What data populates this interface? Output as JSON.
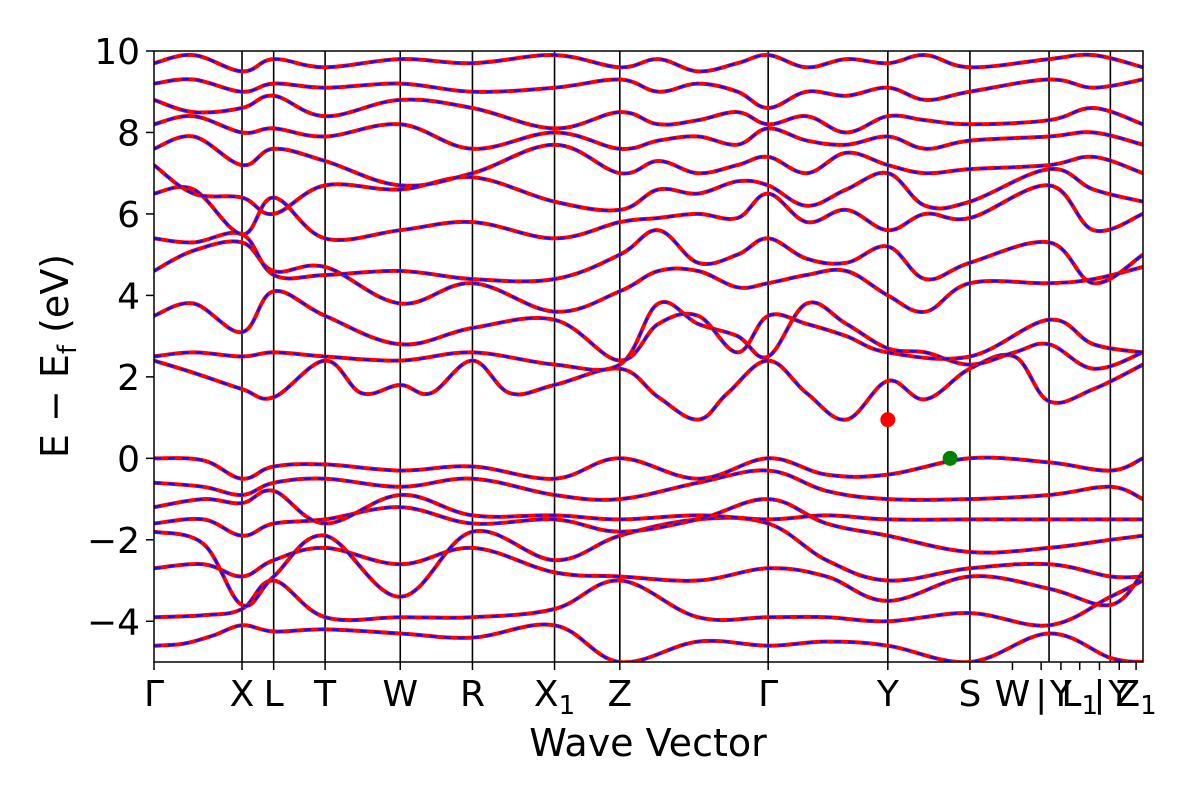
{
  "chart_data": {
    "type": "line",
    "xlabel": "Wave Vector",
    "ylabel": "E − E",
    "ylabel_sub": "f",
    "ylabel_unit": " (eV)",
    "ylim": [
      -5,
      10
    ],
    "xlim": [
      0,
      1
    ],
    "yticks": [
      -4,
      -2,
      0,
      2,
      4,
      6,
      8,
      10
    ],
    "ytick_labels": [
      "−4",
      "−2",
      "0",
      "2",
      "4",
      "6",
      "8",
      "10"
    ],
    "kpoints": [
      {
        "label": "Γ",
        "sub": "",
        "x": 0.0
      },
      {
        "label": "X",
        "sub": "",
        "x": 0.089
      },
      {
        "label": "L",
        "sub": "",
        "x": 0.121
      },
      {
        "label": "T",
        "sub": "",
        "x": 0.173
      },
      {
        "label": "W",
        "sub": "",
        "x": 0.249
      },
      {
        "label": "R",
        "sub": "",
        "x": 0.322
      },
      {
        "label": "X",
        "sub": "1",
        "x": 0.405
      },
      {
        "label": "Z",
        "sub": "",
        "x": 0.471
      },
      {
        "label": "Γ",
        "sub": "",
        "x": 0.621
      },
      {
        "label": "Y",
        "sub": "",
        "x": 0.742
      },
      {
        "label": "S",
        "sub": "",
        "x": 0.825
      },
      {
        "label": "W",
        "sub": "",
        "x": 0.868
      },
      {
        "label": "|",
        "sub": "",
        "x": 0.897
      },
      {
        "label": "Y",
        "sub": "",
        "x": 0.917
      },
      {
        "label": "L",
        "sub": "1",
        "x": 0.936
      },
      {
        "label": "|",
        "sub": "",
        "x": 0.956
      },
      {
        "label": "Y",
        "sub": "",
        "x": 0.976
      },
      {
        "label": "Z",
        "sub": "1",
        "x": 0.993
      }
    ],
    "kpath_lines": [
      0.089,
      0.121,
      0.173,
      0.249,
      0.322,
      0.405,
      0.471,
      0.621,
      0.742,
      0.825,
      0.905,
      0.967
    ],
    "series": [
      {
        "color": "#ff0000",
        "style": "solid"
      },
      {
        "color": "#0000ff",
        "style": "dashed"
      }
    ],
    "bands": [
      {
        "x": [
          0,
          0.03,
          0.06,
          0.089,
          0.121,
          0.173,
          0.249,
          0.322,
          0.405,
          0.471,
          0.55,
          0.621,
          0.68,
          0.742,
          0.825,
          0.905,
          0.967,
          1.0
        ],
        "y": [
          -4.6,
          -4.55,
          -4.35,
          -4.1,
          -4.25,
          -4.2,
          -4.3,
          -4.4,
          -4.1,
          -5.0,
          -4.5,
          -4.6,
          -4.5,
          -4.6,
          -5.0,
          -4.3,
          -4.9,
          -5.0
        ]
      },
      {
        "x": [
          0,
          0.05,
          0.089,
          0.121,
          0.173,
          0.249,
          0.322,
          0.405,
          0.471,
          0.55,
          0.621,
          0.68,
          0.742,
          0.825,
          0.905,
          0.967,
          1.0
        ],
        "y": [
          -3.9,
          -3.85,
          -3.7,
          -3.0,
          -3.9,
          -3.9,
          -3.9,
          -3.7,
          -3.0,
          -3.9,
          -3.9,
          -3.9,
          -4.0,
          -3.8,
          -4.1,
          -3.4,
          -3.0
        ]
      },
      {
        "x": [
          0,
          0.05,
          0.089,
          0.121,
          0.173,
          0.249,
          0.322,
          0.405,
          0.471,
          0.55,
          0.621,
          0.68,
          0.742,
          0.825,
          0.905,
          0.967,
          1.0
        ],
        "y": [
          -2.7,
          -2.6,
          -2.9,
          -2.5,
          -2.2,
          -2.6,
          -2.2,
          -2.8,
          -2.9,
          -3.0,
          -2.7,
          -2.9,
          -3.5,
          -2.9,
          -3.2,
          -3.6,
          -2.8
        ]
      },
      {
        "x": [
          0,
          0.05,
          0.089,
          0.121,
          0.173,
          0.249,
          0.322,
          0.405,
          0.471,
          0.55,
          0.621,
          0.68,
          0.742,
          0.825,
          0.905,
          0.967,
          1.0
        ],
        "y": [
          -1.8,
          -2.1,
          -3.6,
          -2.9,
          -1.9,
          -3.4,
          -1.8,
          -2.5,
          -1.9,
          -1.5,
          -1.6,
          -2.5,
          -3.0,
          -2.7,
          -2.6,
          -2.9,
          -2.9
        ]
      },
      {
        "x": [
          0,
          0.05,
          0.089,
          0.121,
          0.173,
          0.249,
          0.322,
          0.405,
          0.471,
          0.55,
          0.621,
          0.68,
          0.742,
          0.825,
          0.905,
          0.967,
          1.0
        ],
        "y": [
          -1.6,
          -1.5,
          -1.9,
          -1.6,
          -1.5,
          -1.2,
          -1.6,
          -1.5,
          -1.8,
          -1.5,
          -1.0,
          -1.6,
          -1.9,
          -2.3,
          -2.2,
          -2.0,
          -1.9
        ]
      },
      {
        "x": [
          0,
          0.05,
          0.089,
          0.121,
          0.173,
          0.249,
          0.322,
          0.405,
          0.471,
          0.55,
          0.621,
          0.68,
          0.742,
          0.825,
          0.905,
          0.967,
          1.0
        ],
        "y": [
          -1.2,
          -1.0,
          -1.1,
          -0.8,
          -1.6,
          -0.9,
          -1.4,
          -1.4,
          -1.5,
          -1.4,
          -1.5,
          -1.4,
          -1.5,
          -1.5,
          -1.5,
          -1.5,
          -1.5
        ]
      },
      {
        "x": [
          0,
          0.05,
          0.089,
          0.121,
          0.173,
          0.249,
          0.322,
          0.405,
          0.471,
          0.55,
          0.621,
          0.68,
          0.742,
          0.825,
          0.905,
          0.967,
          1.0
        ],
        "y": [
          -0.6,
          -0.7,
          -0.9,
          -0.6,
          -0.5,
          -0.7,
          -0.5,
          -0.9,
          -1.0,
          -0.6,
          -0.3,
          -0.8,
          -1.0,
          -1.0,
          -0.9,
          -0.7,
          -1.0
        ]
      },
      {
        "x": [
          0,
          0.05,
          0.089,
          0.121,
          0.173,
          0.249,
          0.322,
          0.405,
          0.471,
          0.55,
          0.621,
          0.68,
          0.742,
          0.825,
          0.905,
          0.967,
          1.0
        ],
        "y": [
          0.0,
          -0.05,
          -0.5,
          -0.2,
          -0.15,
          -0.3,
          -0.2,
          -0.5,
          0.0,
          -0.5,
          0.0,
          -0.4,
          -0.4,
          0.0,
          -0.1,
          -0.3,
          0.0
        ]
      },
      {
        "x": [
          0,
          0.04,
          0.089,
          0.121,
          0.173,
          0.21,
          0.249,
          0.28,
          0.322,
          0.36,
          0.405,
          0.471,
          0.51,
          0.55,
          0.58,
          0.621,
          0.66,
          0.7,
          0.742,
          0.78,
          0.825,
          0.87,
          0.905,
          0.95,
          1.0
        ],
        "y": [
          2.4,
          2.1,
          1.7,
          1.5,
          2.4,
          1.6,
          1.8,
          1.6,
          2.4,
          1.6,
          1.8,
          2.2,
          1.5,
          0.95,
          1.6,
          2.4,
          1.6,
          0.95,
          1.9,
          1.45,
          2.2,
          2.5,
          1.4,
          1.7,
          2.3
        ]
      },
      {
        "x": [
          0,
          0.04,
          0.089,
          0.121,
          0.173,
          0.249,
          0.322,
          0.405,
          0.471,
          0.51,
          0.55,
          0.59,
          0.621,
          0.66,
          0.7,
          0.742,
          0.78,
          0.825,
          0.87,
          0.905,
          0.95,
          1.0
        ],
        "y": [
          2.5,
          2.6,
          2.5,
          2.6,
          2.5,
          2.4,
          2.6,
          2.3,
          2.3,
          3.8,
          3.3,
          3.0,
          2.5,
          3.8,
          3.3,
          2.7,
          2.6,
          2.3,
          2.6,
          2.8,
          2.2,
          2.6
        ]
      },
      {
        "x": [
          0,
          0.04,
          0.089,
          0.121,
          0.173,
          0.249,
          0.322,
          0.405,
          0.471,
          0.51,
          0.55,
          0.59,
          0.621,
          0.66,
          0.7,
          0.742,
          0.825,
          0.905,
          0.95,
          1.0
        ],
        "y": [
          3.5,
          3.8,
          3.1,
          4.1,
          3.5,
          2.8,
          3.2,
          3.4,
          2.4,
          3.3,
          3.5,
          2.6,
          3.5,
          3.3,
          3.0,
          2.6,
          2.5,
          3.4,
          2.8,
          2.6
        ]
      },
      {
        "x": [
          0,
          0.04,
          0.089,
          0.121,
          0.173,
          0.249,
          0.322,
          0.405,
          0.471,
          0.51,
          0.55,
          0.59,
          0.621,
          0.66,
          0.7,
          0.742,
          0.78,
          0.825,
          0.905,
          0.95,
          1.0
        ],
        "y": [
          4.6,
          5.1,
          5.3,
          4.6,
          4.7,
          3.8,
          4.3,
          3.6,
          4.1,
          4.6,
          4.6,
          4.2,
          4.3,
          4.5,
          4.6,
          4.0,
          3.6,
          4.3,
          4.3,
          4.4,
          4.7
        ]
      },
      {
        "x": [
          0,
          0.04,
          0.089,
          0.121,
          0.173,
          0.249,
          0.322,
          0.405,
          0.471,
          0.51,
          0.55,
          0.59,
          0.621,
          0.66,
          0.7,
          0.742,
          0.78,
          0.825,
          0.905,
          0.95,
          1.0
        ],
        "y": [
          5.4,
          5.3,
          5.5,
          4.5,
          4.5,
          4.6,
          4.4,
          4.4,
          5.0,
          5.6,
          4.8,
          5.0,
          5.4,
          4.9,
          4.8,
          5.2,
          4.4,
          4.8,
          5.3,
          4.3,
          5.0
        ]
      },
      {
        "x": [
          0,
          0.04,
          0.089,
          0.121,
          0.173,
          0.249,
          0.322,
          0.405,
          0.471,
          0.51,
          0.55,
          0.59,
          0.621,
          0.66,
          0.7,
          0.742,
          0.78,
          0.825,
          0.905,
          0.95,
          1.0
        ],
        "y": [
          6.5,
          6.6,
          5.5,
          6.4,
          5.4,
          5.6,
          5.8,
          5.4,
          5.8,
          5.9,
          6.0,
          5.9,
          6.5,
          5.8,
          6.1,
          5.6,
          6.0,
          5.9,
          6.7,
          5.6,
          6.0
        ]
      },
      {
        "x": [
          0,
          0.04,
          0.089,
          0.121,
          0.173,
          0.249,
          0.322,
          0.405,
          0.471,
          0.51,
          0.55,
          0.59,
          0.621,
          0.66,
          0.7,
          0.742,
          0.78,
          0.825,
          0.905,
          0.95,
          1.0
        ],
        "y": [
          7.2,
          6.5,
          6.4,
          6.0,
          6.7,
          6.6,
          6.9,
          6.3,
          6.1,
          6.6,
          6.5,
          6.8,
          6.7,
          6.2,
          6.6,
          7.0,
          6.2,
          6.3,
          7.1,
          6.6,
          6.3
        ]
      },
      {
        "x": [
          0,
          0.04,
          0.089,
          0.121,
          0.173,
          0.249,
          0.322,
          0.405,
          0.471,
          0.51,
          0.55,
          0.59,
          0.621,
          0.66,
          0.7,
          0.742,
          0.78,
          0.825,
          0.905,
          0.95,
          1.0
        ],
        "y": [
          7.6,
          7.9,
          7.2,
          7.6,
          7.3,
          6.7,
          7.0,
          7.7,
          7.0,
          7.3,
          7.0,
          7.2,
          7.4,
          7.0,
          7.5,
          7.2,
          7.0,
          7.1,
          7.2,
          7.4,
          7.0
        ]
      },
      {
        "x": [
          0,
          0.04,
          0.089,
          0.121,
          0.173,
          0.249,
          0.322,
          0.405,
          0.471,
          0.51,
          0.55,
          0.59,
          0.621,
          0.66,
          0.7,
          0.742,
          0.78,
          0.825,
          0.905,
          0.95,
          1.0
        ],
        "y": [
          8.2,
          8.4,
          8.0,
          8.1,
          7.9,
          8.2,
          7.6,
          8.0,
          7.6,
          7.8,
          7.9,
          7.7,
          8.1,
          7.8,
          7.7,
          7.9,
          7.6,
          7.8,
          7.9,
          8.0,
          7.7
        ]
      },
      {
        "x": [
          0,
          0.04,
          0.089,
          0.121,
          0.173,
          0.249,
          0.322,
          0.405,
          0.471,
          0.51,
          0.55,
          0.59,
          0.621,
          0.66,
          0.7,
          0.742,
          0.78,
          0.825,
          0.905,
          0.95,
          1.0
        ],
        "y": [
          8.8,
          8.5,
          8.6,
          8.9,
          8.4,
          8.8,
          8.6,
          8.1,
          8.5,
          8.2,
          8.3,
          8.5,
          8.2,
          8.4,
          8.0,
          8.4,
          8.3,
          8.2,
          8.3,
          8.6,
          8.2
        ]
      },
      {
        "x": [
          0,
          0.04,
          0.089,
          0.121,
          0.173,
          0.249,
          0.322,
          0.405,
          0.471,
          0.51,
          0.55,
          0.59,
          0.621,
          0.66,
          0.7,
          0.742,
          0.78,
          0.825,
          0.905,
          0.95,
          1.0
        ],
        "y": [
          9.2,
          9.3,
          9.0,
          9.2,
          9.1,
          9.2,
          9.0,
          9.1,
          9.3,
          9.0,
          9.2,
          9.0,
          8.6,
          9.0,
          8.9,
          9.1,
          8.8,
          9.0,
          9.3,
          9.1,
          9.3
        ]
      },
      {
        "x": [
          0,
          0.04,
          0.089,
          0.121,
          0.173,
          0.249,
          0.322,
          0.405,
          0.471,
          0.51,
          0.55,
          0.59,
          0.621,
          0.66,
          0.7,
          0.742,
          0.78,
          0.825,
          0.905,
          0.95,
          1.0
        ],
        "y": [
          9.7,
          9.9,
          9.5,
          9.8,
          9.6,
          9.8,
          9.7,
          9.9,
          9.6,
          9.8,
          9.5,
          9.7,
          9.9,
          9.6,
          9.8,
          9.7,
          9.9,
          9.6,
          9.8,
          9.9,
          9.6
        ]
      }
    ],
    "markers": [
      {
        "x": 0.742,
        "y": 0.95,
        "color": "#ff0000"
      },
      {
        "x": 0.805,
        "y": 0.0,
        "color": "#008000"
      }
    ]
  }
}
